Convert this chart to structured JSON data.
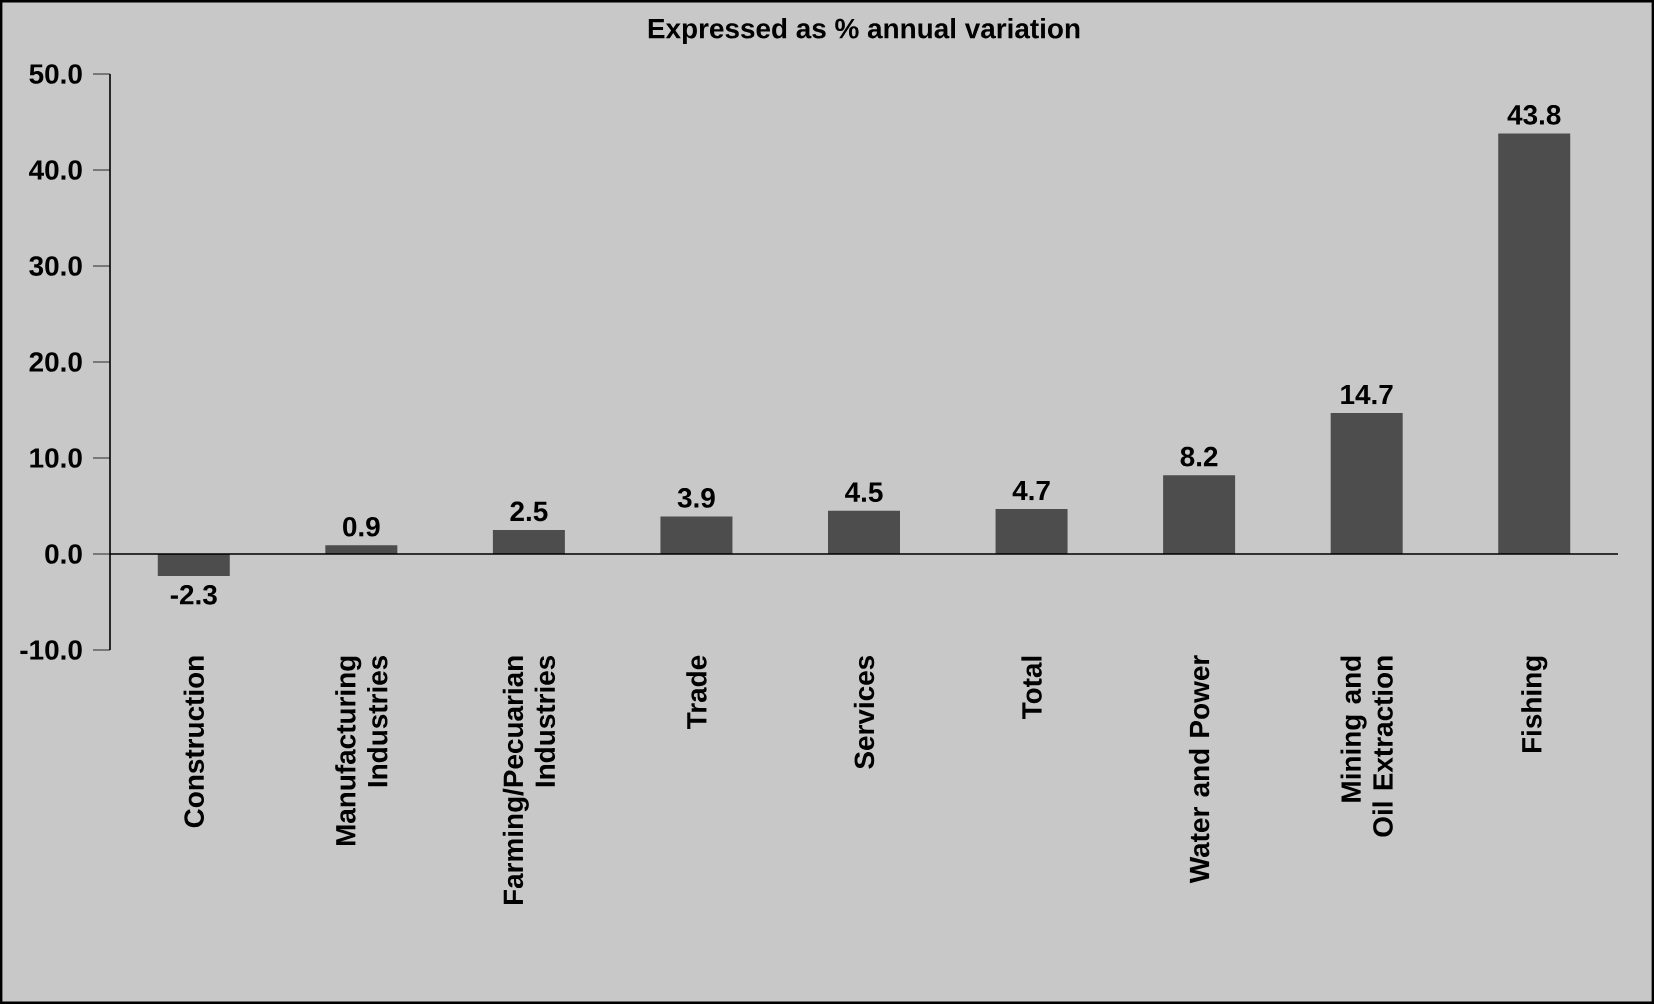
{
  "chart_data": {
    "type": "bar",
    "title": "Expressed as % annual variation",
    "categories": [
      "Construction",
      "Manufacturing Industries",
      "Farming/Pecuarian Industries",
      "Trade",
      "Services",
      "Total",
      "Water and Power",
      "Mining and Oil Extraction",
      "Fishing"
    ],
    "values": [
      -2.3,
      0.9,
      2.5,
      3.9,
      4.5,
      4.7,
      8.2,
      14.7,
      43.8
    ],
    "color": "#4d4d4d",
    "ylim": [
      -10,
      50
    ],
    "yticks": [
      {
        "value": -10,
        "label": "-10.0"
      },
      {
        "value": 0,
        "label": "0.0"
      },
      {
        "value": 10,
        "label": "10.0"
      },
      {
        "value": 20,
        "label": "20.0"
      },
      {
        "value": 30,
        "label": "30.0"
      },
      {
        "value": 40,
        "label": "40.0"
      },
      {
        "value": 50,
        "label": "50.0"
      }
    ],
    "data_labels": true
  }
}
